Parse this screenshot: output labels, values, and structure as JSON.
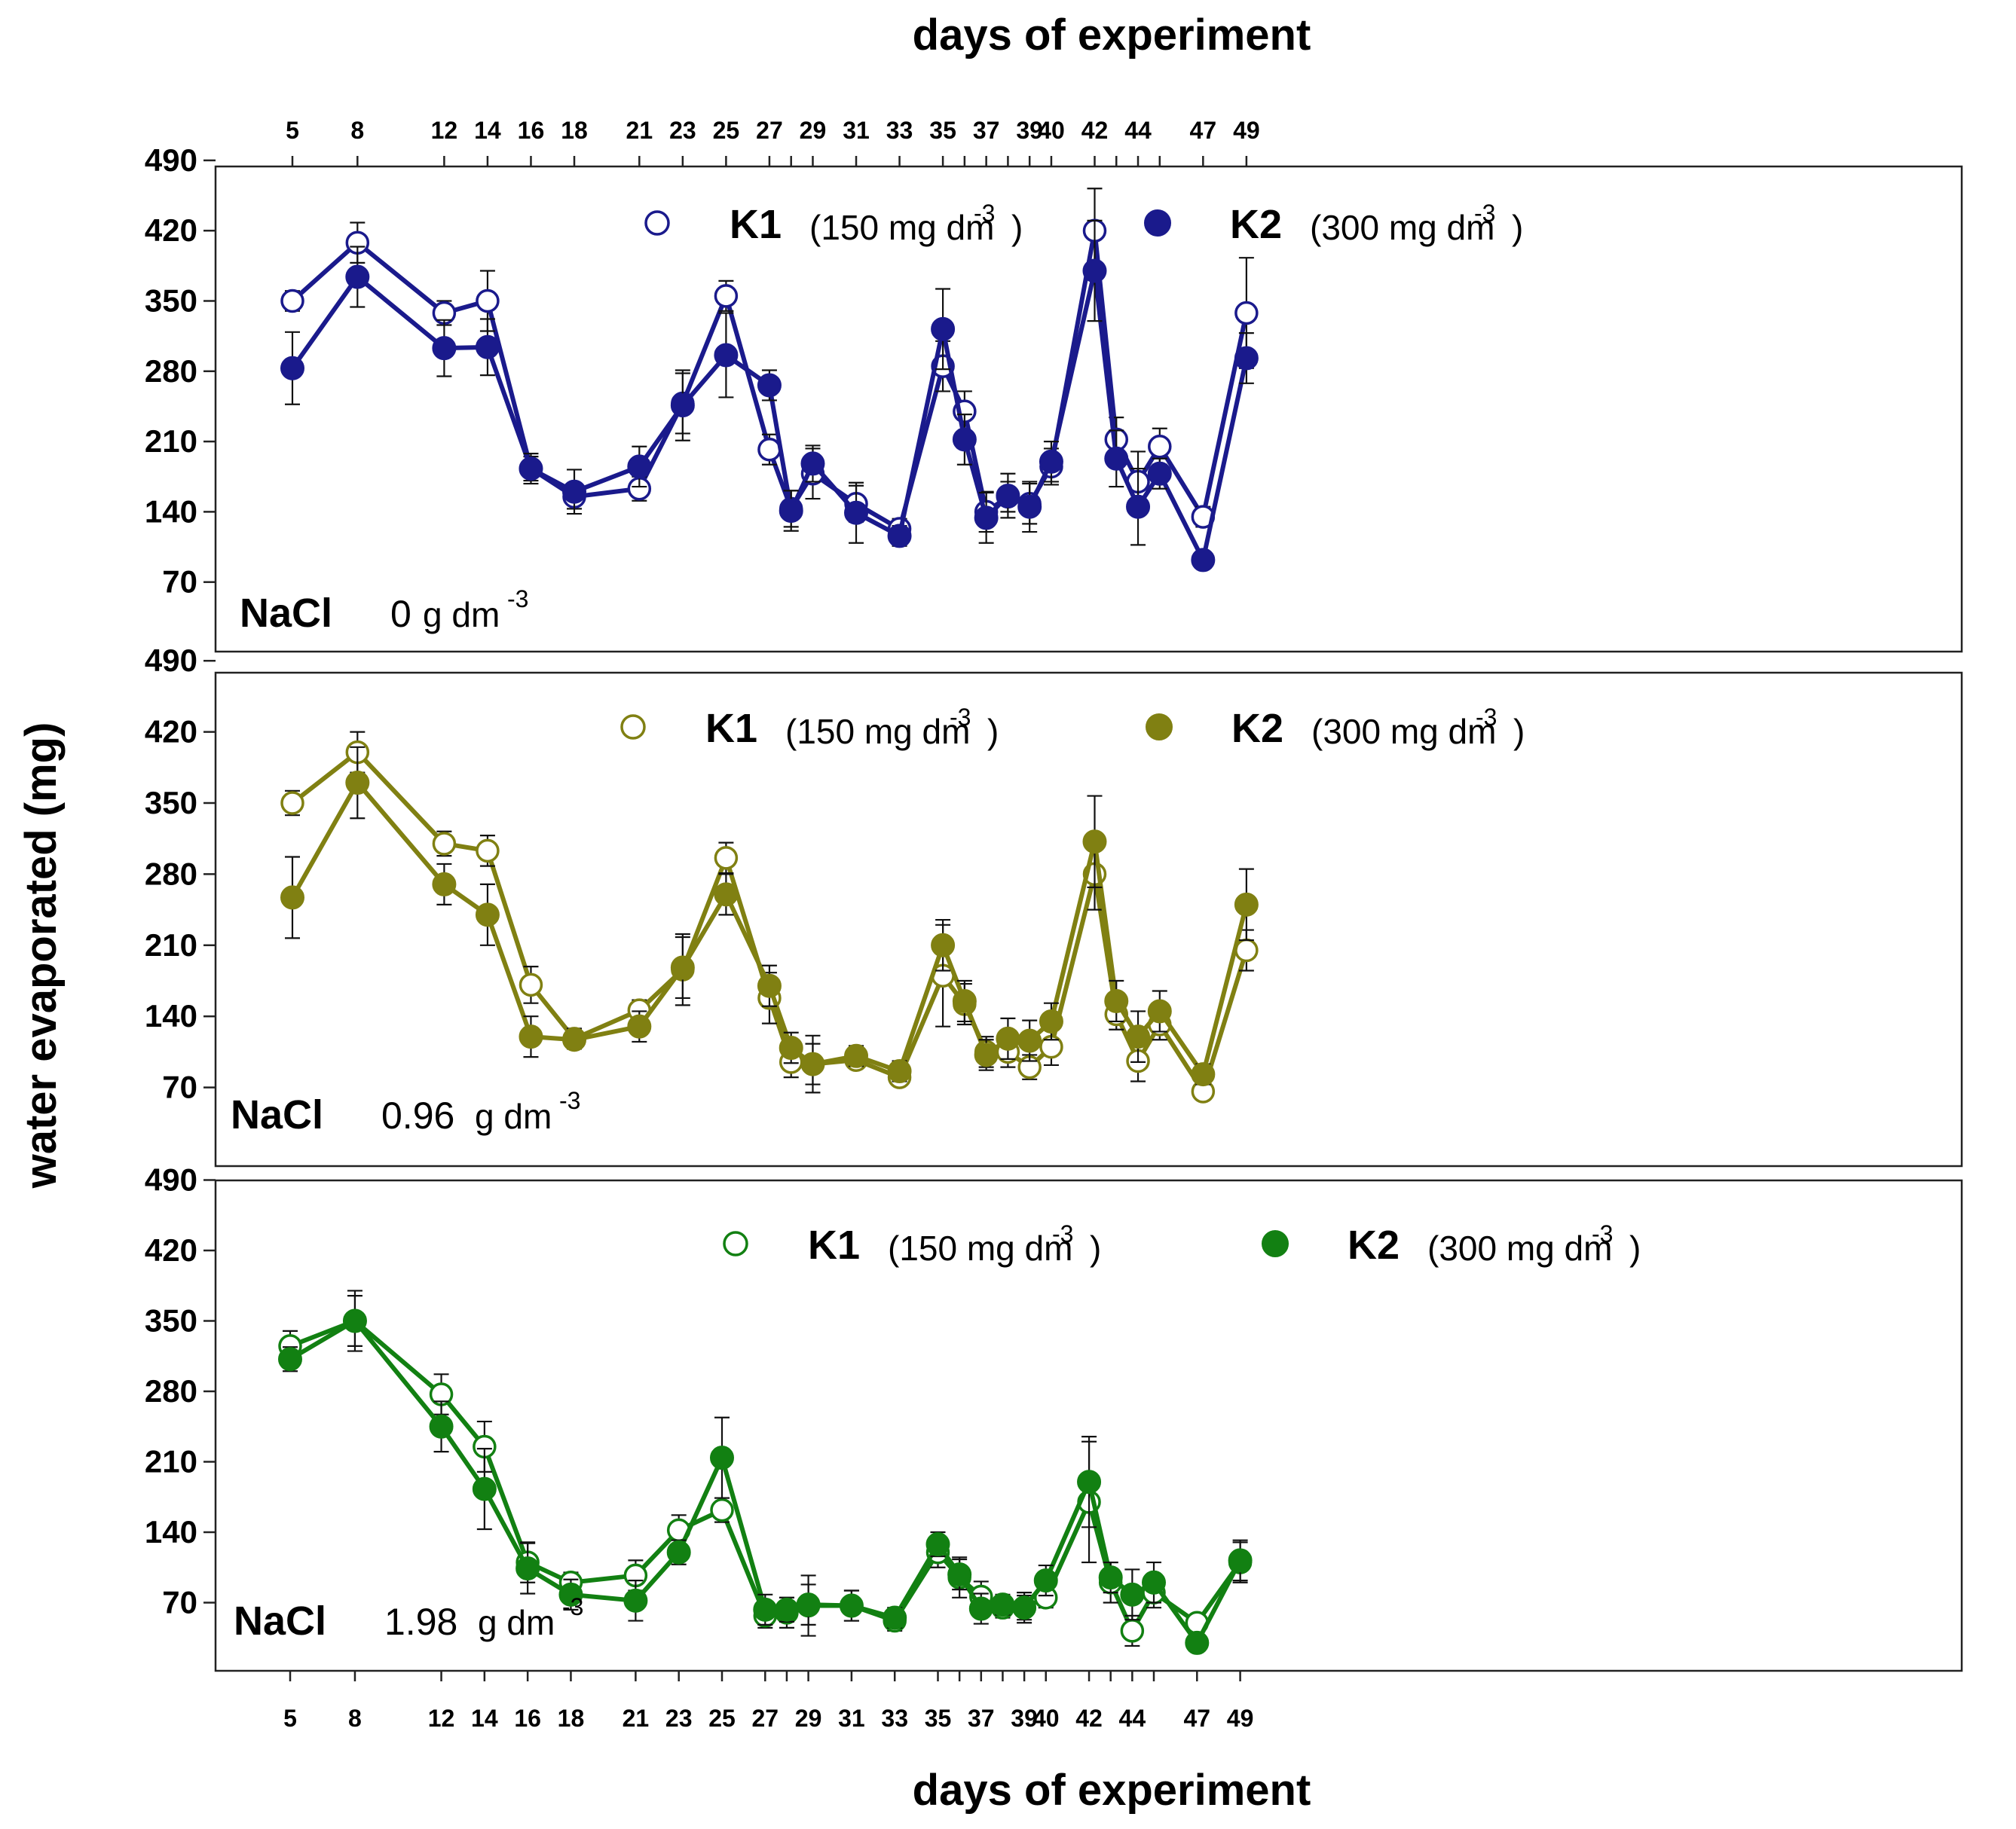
{
  "chart_data": {
    "type": "line",
    "title_top": "days of experiment",
    "xlabel": "days of experiment",
    "ylabel": "water evaporated (mg)",
    "x_top_ticks": [
      "5",
      "8",
      "12",
      "14",
      "16",
      "18",
      "21",
      "23",
      "25",
      "27",
      "29",
      "31",
      "33",
      "35",
      "37",
      "39",
      "40",
      "42",
      "44",
      "47",
      "49"
    ],
    "x_bottom_ticks": [
      "5",
      "8",
      "12",
      "14",
      "16",
      "18",
      "21",
      "23",
      "25",
      "27",
      "29",
      "31",
      "33",
      "35",
      "37",
      "39",
      "40",
      "42",
      "44",
      "47",
      "49"
    ],
    "ylim": [
      0,
      500
    ],
    "yticks": [
      "70",
      "140",
      "210",
      "280",
      "350",
      "420",
      "490"
    ],
    "x": [
      5,
      8,
      12,
      14,
      16,
      18,
      21,
      23,
      25,
      27,
      28,
      29,
      31,
      33,
      35,
      36,
      37,
      38,
      39,
      40,
      42,
      43,
      44,
      45,
      47,
      49
    ],
    "panels": [
      {
        "nacl_label": "NaCl",
        "nacl_value": "0",
        "nacl_unit": "g dm",
        "nacl_exp": "-3",
        "color": "#1a1a8c",
        "series": [
          {
            "name": "K1",
            "dose": "(150 mg dm",
            "exp": "-3",
            "close": ")",
            "marker": "open",
            "values": [
              350,
              408,
              338,
              350,
              183,
              155,
              163,
              248,
              355,
              202,
              143,
              178,
              148,
              123,
              285,
              240,
              140,
              155,
              148,
              185,
              420,
              212,
              170,
              205,
              135,
              338
            ],
            "err": [
              10,
              20,
              12,
              30,
              12,
              12,
              12,
              30,
              15,
              15,
              18,
              25,
              18,
              10,
              25,
              20,
              20,
              15,
              20,
              18,
              42,
              22,
              30,
              18,
              10,
              55
            ]
          },
          {
            "name": "K2",
            "dose": "(300 mg dm",
            "exp": "-3",
            "close": ")",
            "marker": "filled",
            "values": [
              283,
              374,
              303,
              304,
              183,
              160,
              185,
              246,
              296,
              266,
              141,
              188,
              139,
              116,
              322,
              212,
              134,
              156,
              145,
              190,
              380,
              193,
              145,
              178,
              92,
              293
            ],
            "err": [
              36,
              30,
              28,
              28,
              15,
              22,
              20,
              35,
              42,
              15,
              20,
              18,
              30,
              10,
              40,
              25,
              25,
              22,
              25,
              20,
              50,
              28,
              38,
              15,
              8,
              25
            ]
          }
        ]
      },
      {
        "nacl_label": "NaCl",
        "nacl_value": "0.96",
        "nacl_unit": "g dm",
        "nacl_exp": "-3",
        "color": "#808012",
        "series": [
          {
            "name": "K1",
            "dose": "(150 mg dm",
            "exp": "-3",
            "close": ")",
            "marker": "open",
            "values": [
              350,
              400,
              310,
              303,
              171,
              118,
              146,
              186,
              296,
              158,
              95,
              93,
              97,
              80,
              180,
              152,
              105,
              105,
              90,
              110,
              280,
              142,
              96,
              132,
              66,
              205
            ],
            "err": [
              12,
              20,
              12,
              15,
              18,
              10,
              10,
              35,
              15,
              25,
              15,
              20,
              8,
              8,
              50,
              20,
              15,
              15,
              12,
              18,
              35,
              15,
              20,
              15,
              8,
              20
            ]
          },
          {
            "name": "K2",
            "dose": "(300 mg dm",
            "exp": "-3",
            "close": ")",
            "marker": "filled",
            "values": [
              257,
              370,
              270,
              240,
              120,
              117,
              130,
              188,
              260,
              170,
              109,
              93,
              101,
              86,
              210,
              155,
              102,
              118,
              116,
              135,
              312,
              155,
              120,
              145,
              83,
              250
            ],
            "err": [
              40,
              35,
              20,
              30,
              20,
              8,
              15,
              30,
              20,
              20,
              15,
              28,
              10,
              10,
              25,
              20,
              15,
              20,
              20,
              18,
              45,
              20,
              25,
              20,
              10,
              35
            ]
          }
        ]
      },
      {
        "nacl_label": "NaCl",
        "nacl_value": "1.98",
        "nacl_unit": "g dm",
        "nacl_exp": "-3",
        "color": "#128012",
        "series": [
          {
            "name": "K1",
            "dose": "(150 mg dm",
            "exp": "-3",
            "close": ")",
            "marker": "open",
            "values": [
              325,
              350,
              277,
              225,
              110,
              90,
              97,
              142,
              162,
              57,
              60,
              67,
              67,
              52,
              120,
              95,
              76,
              65,
              65,
              75,
              170,
              90,
              42,
              80,
              50,
              110
            ],
            "err": [
              15,
              25,
              20,
              25,
              20,
              10,
              15,
              15,
              12,
              12,
              15,
              30,
              15,
              10,
              15,
              20,
              15,
              10,
              12,
              10,
              60,
              20,
              15,
              15,
              8,
              20
            ]
          },
          {
            "name": "K2",
            "dose": "(300 mg dm",
            "exp": "-3",
            "close": ")",
            "marker": "filled",
            "values": [
              312,
              350,
              245,
              183,
              104,
              78,
              72,
              120,
              214,
              63,
              63,
              68,
              67,
              55,
              128,
              98,
              64,
              68,
              65,
              92,
              190,
              95,
              78,
              90,
              30,
              112
            ],
            "err": [
              12,
              30,
              25,
              40,
              25,
              15,
              20,
              12,
              40,
              15,
              12,
              20,
              15,
              10,
              12,
              15,
              15,
              10,
              15,
              15,
              45,
              15,
              25,
              20,
              8,
              20
            ]
          }
        ]
      }
    ]
  }
}
